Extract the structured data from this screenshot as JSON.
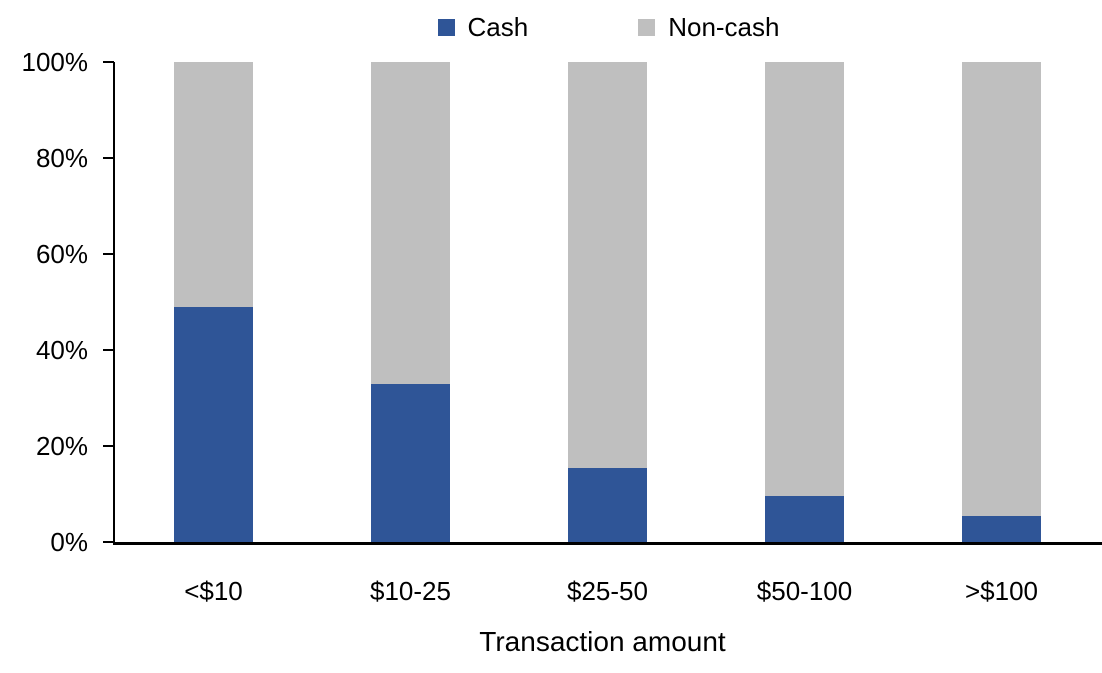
{
  "chart_data": {
    "type": "bar",
    "stacked": true,
    "units": "percent",
    "title": "",
    "xlabel": "Transaction amount",
    "ylabel": "",
    "categories": [
      "<$10",
      "$10-25",
      "$25-50",
      "$50-100",
      ">$100"
    ],
    "series": [
      {
        "name": "Cash",
        "color": "#2F5597",
        "values": [
          49,
          33,
          15.5,
          9.5,
          5.5
        ]
      },
      {
        "name": "Non-cash",
        "color": "#BFBFBF",
        "values": [
          51,
          67,
          84.5,
          90.5,
          94.5
        ]
      }
    ],
    "ylim": [
      0,
      100
    ],
    "y_tick_labels": [
      "0%",
      "20%",
      "40%",
      "60%",
      "80%",
      "100%"
    ],
    "legend": {
      "position": "top-center",
      "entries": [
        "Cash",
        "Non-cash"
      ]
    },
    "grid": false,
    "axis_color": "#000000",
    "text_color": "#000000",
    "background_color": "#FFFFFF"
  }
}
